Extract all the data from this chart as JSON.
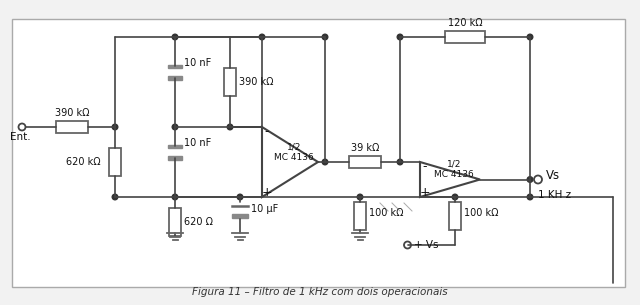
{
  "bg_color": "#f2f2f2",
  "line_color": "#444444",
  "component_color": "#666666",
  "fill_color": "#888888",
  "text_color": "#111111",
  "title": "Figura 11 – Filtro de 1 kHz com dois operacionais",
  "labels": {
    "ent": "Ent.",
    "r1": "390 kΩ",
    "c1": "10 nF",
    "r2": "390 kΩ",
    "c2": "10 nF",
    "r3": "620 Ω",
    "r4": "620 kΩ",
    "c3": "10 μF",
    "op1": "1/2\nMC 4136",
    "r5": "39 kΩ",
    "r6": "100 kΩ",
    "r7": "100 kΩ",
    "r8": "120 kΩ",
    "op2": "1/2\nMC 4136",
    "vs_out": "Vs",
    "vs_plus": "+ Vs",
    "freq": "1 KH z"
  }
}
